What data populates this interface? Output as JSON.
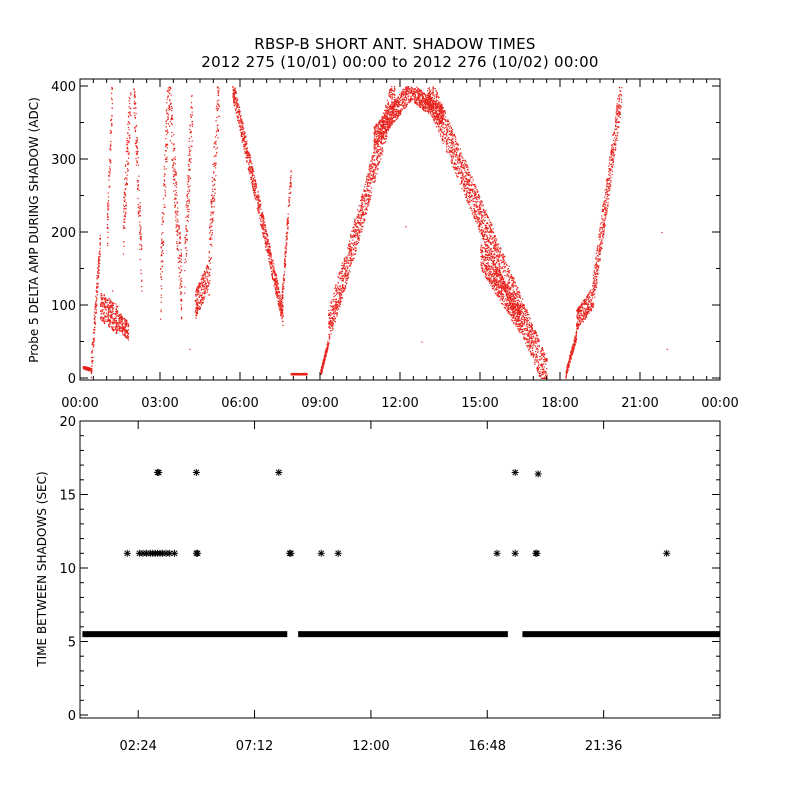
{
  "title": "RBSP-B SHORT ANT. SHADOW TIMES",
  "subtitle": "2012 275 (10/01) 00:00 to 2012 276 (10/02) 00:00",
  "colors": {
    "top_points": "#e8221c",
    "bottom_points": "#000000",
    "axes": "#000000",
    "background": "#ffffff"
  },
  "chart_data": [
    {
      "type": "scatter",
      "ylabel": "Probe 5 DELTA AMP DURING SHADOW (ADC)",
      "xlabel": "",
      "xlim_hours": [
        0,
        24
      ],
      "ylim": [
        0,
        400
      ],
      "x_ticks": [
        {
          "h": 0,
          "label": "00:00"
        },
        {
          "h": 3,
          "label": "03:00"
        },
        {
          "h": 6,
          "label": "06:00"
        },
        {
          "h": 9,
          "label": "09:00"
        },
        {
          "h": 12,
          "label": "12:00"
        },
        {
          "h": 15,
          "label": "15:00"
        },
        {
          "h": 18,
          "label": "18:00"
        },
        {
          "h": 21,
          "label": "21:00"
        },
        {
          "h": 24,
          "label": "00:00"
        }
      ],
      "y_ticks": [
        0,
        100,
        200,
        300,
        400
      ],
      "segments": [
        {
          "t0": 0.1,
          "t1": 0.4,
          "y0": 15,
          "y1": 12,
          "spread": 4
        },
        {
          "t0": 0.4,
          "t1": 0.75,
          "y0": 12,
          "y1": 190,
          "spread": 35
        },
        {
          "t0": 0.75,
          "t1": 1.4,
          "y0": 100,
          "y1": 80,
          "spread": 40
        },
        {
          "t0": 1.0,
          "t1": 1.2,
          "y0": 200,
          "y1": 400,
          "spread": 60
        },
        {
          "t0": 1.4,
          "t1": 1.8,
          "y0": 80,
          "y1": 65,
          "spread": 25
        },
        {
          "t0": 1.6,
          "t1": 1.9,
          "y0": 200,
          "y1": 400,
          "spread": 80
        },
        {
          "t0": 2.0,
          "t1": 2.3,
          "y0": 400,
          "y1": 150,
          "spread": 80
        },
        {
          "t0": 3.0,
          "t1": 3.3,
          "y0": 120,
          "y1": 400,
          "spread": 90
        },
        {
          "t0": 3.3,
          "t1": 3.8,
          "y0": 400,
          "y1": 120,
          "spread": 90
        },
        {
          "t0": 3.9,
          "t1": 4.2,
          "y0": 150,
          "y1": 380,
          "spread": 90
        },
        {
          "t0": 4.3,
          "t1": 4.8,
          "y0": 100,
          "y1": 140,
          "spread": 40
        },
        {
          "t0": 4.8,
          "t1": 5.2,
          "y0": 140,
          "y1": 400,
          "spread": 90
        },
        {
          "t0": 5.7,
          "t1": 7.6,
          "y0": 400,
          "y1": 85,
          "spread": 30
        },
        {
          "t0": 7.55,
          "t1": 7.9,
          "y0": 100,
          "y1": 280,
          "spread": 30
        },
        {
          "t0": 7.9,
          "t1": 8.5,
          "y0": 6,
          "y1": 6,
          "spread": 2
        },
        {
          "t0": 9.0,
          "t1": 9.3,
          "y0": 5,
          "y1": 50,
          "spread": 10
        },
        {
          "t0": 9.3,
          "t1": 10.5,
          "y0": 70,
          "y1": 220,
          "spread": 50
        },
        {
          "t0": 10.5,
          "t1": 11.8,
          "y0": 220,
          "y1": 400,
          "spread": 50
        },
        {
          "t0": 11.0,
          "t1": 12.5,
          "y0": 330,
          "y1": 400,
          "spread": 30
        },
        {
          "t0": 12.5,
          "t1": 13.6,
          "y0": 390,
          "y1": 360,
          "spread": 25
        },
        {
          "t0": 13.0,
          "t1": 17.5,
          "y0": 400,
          "y1": 2,
          "spread": 50
        },
        {
          "t0": 15.0,
          "t1": 16.5,
          "y0": 170,
          "y1": 80,
          "spread": 40
        },
        {
          "t0": 18.2,
          "t1": 18.6,
          "y0": 6,
          "y1": 60,
          "spread": 12
        },
        {
          "t0": 18.6,
          "t1": 19.2,
          "y0": 80,
          "y1": 110,
          "spread": 30
        },
        {
          "t0": 19.2,
          "t1": 20.3,
          "y0": 110,
          "y1": 400,
          "spread": 50
        }
      ],
      "isolated_points": [
        {
          "h": 1.2,
          "y": 120
        },
        {
          "h": 4.1,
          "y": 40
        },
        {
          "h": 13.2,
          "y": 420
        },
        {
          "h": 12.8,
          "y": 50
        },
        {
          "h": 22.0,
          "y": 40
        },
        {
          "h": 21.8,
          "y": 200
        },
        {
          "h": 12.2,
          "y": 208
        }
      ]
    },
    {
      "type": "scatter",
      "ylabel": "TIME BETWEEN SHADOWS (SEC)",
      "xlabel": "",
      "xlim_hours": [
        0,
        26.4
      ],
      "ylim": [
        0,
        20
      ],
      "x_ticks": [
        {
          "h": 2.4,
          "label": "02:24"
        },
        {
          "h": 7.2,
          "label": "07:12"
        },
        {
          "h": 12.0,
          "label": "12:00"
        },
        {
          "h": 16.8,
          "label": "16:48"
        },
        {
          "h": 21.6,
          "label": "21:36"
        }
      ],
      "y_ticks": [
        0,
        5,
        10,
        15,
        20
      ],
      "baseline_value": 5.5,
      "baseline_ranges": [
        [
          0.1,
          8.55
        ],
        [
          9.0,
          17.65
        ],
        [
          18.25,
          26.4
        ]
      ],
      "points": [
        {
          "h": 1.95,
          "y": 11
        },
        {
          "h": 2.45,
          "y": 11
        },
        {
          "h": 2.6,
          "y": 11
        },
        {
          "h": 2.75,
          "y": 11
        },
        {
          "h": 2.9,
          "y": 11
        },
        {
          "h": 3.0,
          "y": 11
        },
        {
          "h": 3.1,
          "y": 11
        },
        {
          "h": 3.2,
          "y": 11
        },
        {
          "h": 3.3,
          "y": 11
        },
        {
          "h": 3.4,
          "y": 11
        },
        {
          "h": 3.55,
          "y": 11
        },
        {
          "h": 3.7,
          "y": 11
        },
        {
          "h": 3.9,
          "y": 11
        },
        {
          "h": 3.2,
          "y": 16.5
        },
        {
          "h": 3.25,
          "y": 16.5
        },
        {
          "h": 4.8,
          "y": 11
        },
        {
          "h": 4.85,
          "y": 11
        },
        {
          "h": 4.8,
          "y": 16.5
        },
        {
          "h": 8.2,
          "y": 16.5
        },
        {
          "h": 8.65,
          "y": 11
        },
        {
          "h": 8.7,
          "y": 11
        },
        {
          "h": 9.95,
          "y": 11
        },
        {
          "h": 10.65,
          "y": 11
        },
        {
          "h": 17.2,
          "y": 11
        },
        {
          "h": 17.95,
          "y": 11
        },
        {
          "h": 17.95,
          "y": 16.5
        },
        {
          "h": 18.8,
          "y": 11
        },
        {
          "h": 18.85,
          "y": 11
        },
        {
          "h": 18.9,
          "y": 16.4
        },
        {
          "h": 24.2,
          "y": 11
        }
      ]
    }
  ]
}
